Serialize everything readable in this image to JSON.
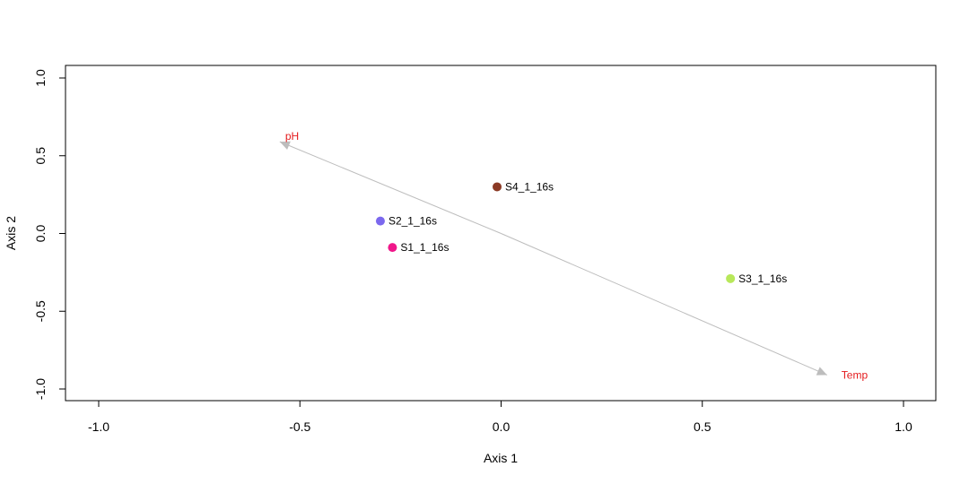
{
  "chart_data": {
    "type": "scatter",
    "title": "",
    "xlabel": "Axis 1",
    "ylabel": "Axis 2",
    "xlim": [
      -1.08,
      1.08
    ],
    "ylim": [
      -1.08,
      1.08
    ],
    "xticks": [
      -1.0,
      -0.5,
      0.0,
      0.5,
      1.0
    ],
    "xtick_labels": [
      "-1.0",
      "-0.5",
      "0.0",
      "0.5",
      "1.0"
    ],
    "yticks": [
      -1.0,
      -0.5,
      0.0,
      0.5,
      1.0
    ],
    "ytick_labels": [
      "-1.0",
      "-0.5",
      "0.0",
      "0.5",
      "1.0"
    ],
    "grid": false,
    "points": [
      {
        "label": "S4_1_16s",
        "x": -0.01,
        "y": 0.3,
        "color": "#8b3a25"
      },
      {
        "label": "S2_1_16s",
        "x": -0.3,
        "y": 0.08,
        "color": "#7b68ee"
      },
      {
        "label": "S1_1_16s",
        "x": -0.27,
        "y": -0.09,
        "color": "#f0178a"
      },
      {
        "label": "S3_1_16s",
        "x": 0.57,
        "y": -0.29,
        "color": "#b8e85a"
      }
    ],
    "vectors": [
      {
        "label": "pH",
        "x": -0.55,
        "y": 0.59,
        "color": "#e41a1c"
      },
      {
        "label": "Temp",
        "x": 0.81,
        "y": -0.91,
        "color": "#e41a1c"
      }
    ],
    "vector_line_color": "#bdbdbd"
  }
}
